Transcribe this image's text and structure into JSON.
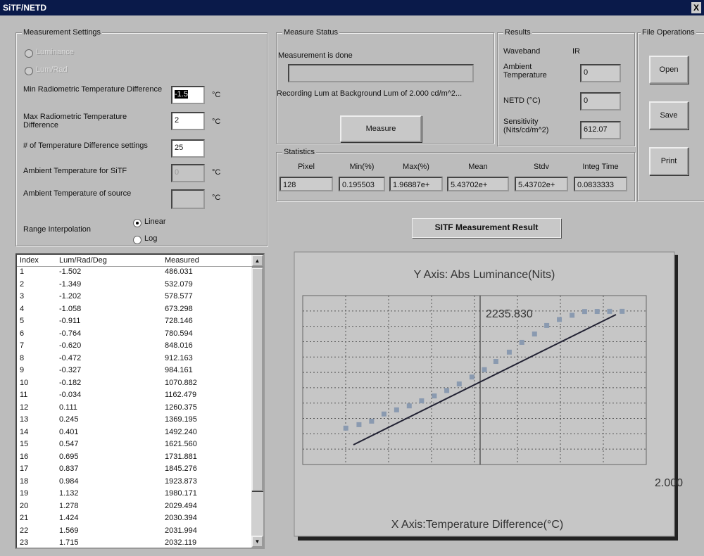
{
  "window": {
    "title": "SiTF/NETD",
    "close": "X"
  },
  "settings": {
    "title": "Measurement Settings",
    "radio_1": "Luminance",
    "radio_2": "Lum/Rad",
    "min_label": "Min Radiometric Temperature Difference",
    "min_value": "-1.5",
    "max_label": "Max Radiometric Temperature Difference",
    "max_value": "2",
    "count_label": "# of Temperature Difference settings",
    "count_value": "25",
    "ambient_sitf_label": "Ambient Temperature for SiTF",
    "ambient_sitf_value": "0",
    "ambient_source_label": "Ambient Temperature of source",
    "unit": "°C",
    "range_label": "Range Interpolation",
    "linear": "Linear",
    "log": "Log"
  },
  "status": {
    "title": "Measure Status",
    "message": "Measurement is done",
    "recording": "Recording Lum at Background Lum of 2.000 cd/m^2...",
    "button": "Measure"
  },
  "results": {
    "title": "Results",
    "waveband_label": "Waveband",
    "waveband_value": "IR",
    "ambient_label": "Ambient Temperature",
    "ambient_value": "0",
    "netd_label": "NETD (°C)",
    "netd_value": "0",
    "sensitivity_label": "Sensitivity (Nits/cd/m^2)",
    "sensitivity_value": "612.07"
  },
  "file": {
    "title": "File Operations",
    "open": "Open",
    "save": "Save",
    "print": "Print"
  },
  "statistics": {
    "title": "Statistics",
    "headers": [
      "Pixel",
      "Min(%)",
      "Max(%)",
      "Mean",
      "Stdv",
      "Integ Time"
    ],
    "values": [
      "128",
      "0.195503",
      "1.96887e+",
      "5.43702e+",
      "5.43702e+",
      "0.0833333"
    ]
  },
  "result_button": "SITF Measurement Result",
  "plot": {
    "y_title": "Y Axis: Abs Luminance(Nits)",
    "x_title": "X Axis:Temperature Difference(°C)",
    "y_label": "2235.830",
    "x_label": "2.000",
    "xlim": [
      -2,
      2
    ],
    "ylim": [
      0,
      2235.83
    ]
  },
  "table": {
    "headers": [
      "Index",
      "Lum/Rad/Deg",
      "Measured"
    ],
    "rows": [
      [
        "1",
        "-1.502",
        "486.031"
      ],
      [
        "2",
        "-1.349",
        "532.079"
      ],
      [
        "3",
        "-1.202",
        "578.577"
      ],
      [
        "4",
        "-1.058",
        "673.298"
      ],
      [
        "5",
        "-0.911",
        "728.146"
      ],
      [
        "6",
        "-0.764",
        "780.594"
      ],
      [
        "7",
        "-0.620",
        "848.016"
      ],
      [
        "8",
        "-0.472",
        "912.163"
      ],
      [
        "9",
        "-0.327",
        "984.161"
      ],
      [
        "10",
        "-0.182",
        "1070.882"
      ],
      [
        "11",
        "-0.034",
        "1162.479"
      ],
      [
        "12",
        "0.111",
        "1260.375"
      ],
      [
        "13",
        "0.245",
        "1369.195"
      ],
      [
        "14",
        "0.401",
        "1492.240"
      ],
      [
        "15",
        "0.547",
        "1621.560"
      ],
      [
        "16",
        "0.695",
        "1731.881"
      ],
      [
        "17",
        "0.837",
        "1845.276"
      ],
      [
        "18",
        "0.984",
        "1923.873"
      ],
      [
        "19",
        "1.132",
        "1980.171"
      ],
      [
        "20",
        "1.278",
        "2029.494"
      ],
      [
        "21",
        "1.424",
        "2030.394"
      ],
      [
        "22",
        "1.569",
        "2031.994"
      ],
      [
        "23",
        "1.715",
        "2032.119"
      ]
    ]
  }
}
